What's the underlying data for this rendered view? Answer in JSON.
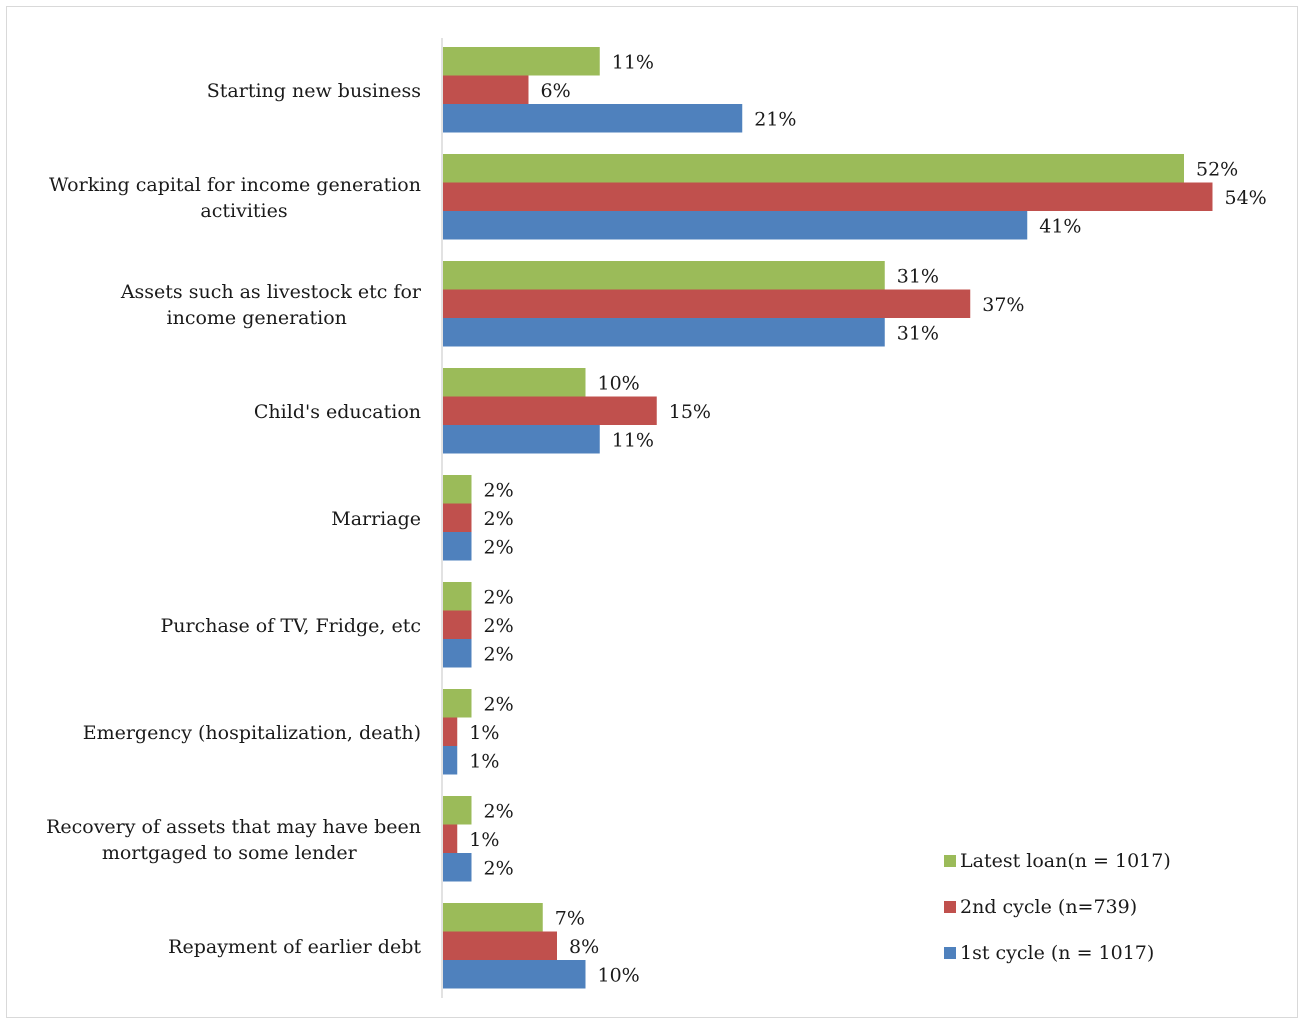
{
  "chart_data": {
    "type": "bar",
    "orientation": "horizontal",
    "title": "",
    "xlabel": "",
    "ylabel": "",
    "xlim": [
      0,
      55
    ],
    "grid": false,
    "legend_position": "bottom-right",
    "categories": [
      "Starting new business",
      "Working capital for income generation activities",
      "Assets such as livestock etc for income generation",
      "Child's education",
      "Marriage",
      "Purchase of TV, Fridge, etc",
      "Emergency (hospitalization, death)",
      "Recovery of assets that may have been mortgaged to some lender",
      "Repayment of earlier debt"
    ],
    "series": [
      {
        "name": "Latest loan(n = 1017)",
        "color": "#9bbb59",
        "values": [
          11,
          52,
          31,
          10,
          2,
          2,
          2,
          2,
          7
        ],
        "labels": [
          "11%",
          "52%",
          "31%",
          "10%",
          "2%",
          "2%",
          "2%",
          "2%",
          "7%"
        ]
      },
      {
        "name": "2nd cycle (n=739)",
        "color": "#c0504d",
        "values": [
          6,
          54,
          37,
          15,
          2,
          2,
          1,
          1,
          8
        ],
        "labels": [
          "6%",
          "54%",
          "37%",
          "15%",
          "2%",
          "2%",
          "1%",
          "1%",
          "8%"
        ]
      },
      {
        "name": "1st cycle (n = 1017)",
        "color": "#4f81bd",
        "values": [
          21,
          41,
          31,
          11,
          2,
          2,
          1,
          2,
          10
        ],
        "labels": [
          "21%",
          "41%",
          "31%",
          "11%",
          "2%",
          "2%",
          "1%",
          "2%",
          "10%"
        ]
      }
    ]
  }
}
